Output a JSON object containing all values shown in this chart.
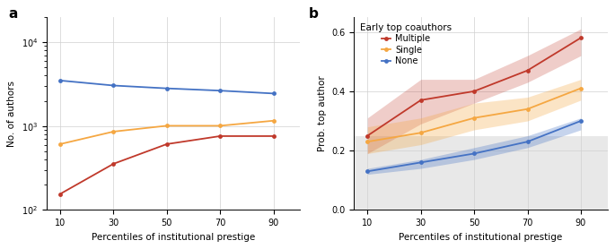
{
  "x": [
    10,
    30,
    50,
    70,
    90
  ],
  "panel_a": {
    "blue": [
      3500,
      3050,
      2820,
      2650,
      2450
    ],
    "orange": [
      610,
      860,
      1010,
      1010,
      1160
    ],
    "red": [
      155,
      355,
      610,
      760,
      760
    ]
  },
  "panel_b": {
    "red_mean": [
      0.25,
      0.37,
      0.4,
      0.47,
      0.58
    ],
    "red_lo": [
      0.19,
      0.29,
      0.36,
      0.43,
      0.52
    ],
    "red_hi": [
      0.31,
      0.44,
      0.44,
      0.52,
      0.61
    ],
    "orange_mean": [
      0.23,
      0.26,
      0.31,
      0.34,
      0.41
    ],
    "orange_lo": [
      0.19,
      0.22,
      0.27,
      0.3,
      0.37
    ],
    "orange_hi": [
      0.28,
      0.31,
      0.36,
      0.38,
      0.44
    ],
    "blue_mean": [
      0.13,
      0.16,
      0.19,
      0.23,
      0.3
    ],
    "blue_lo": [
      0.12,
      0.14,
      0.17,
      0.21,
      0.27
    ],
    "blue_hi": [
      0.14,
      0.17,
      0.21,
      0.25,
      0.31
    ]
  },
  "colors": {
    "blue": "#4472c4",
    "orange": "#f5a742",
    "red": "#c0392b"
  },
  "bg_gray": "#e8e8e8",
  "bg_white": "#ffffff",
  "grid_color": "#d0d0d0",
  "reference_line_y": 0.25
}
